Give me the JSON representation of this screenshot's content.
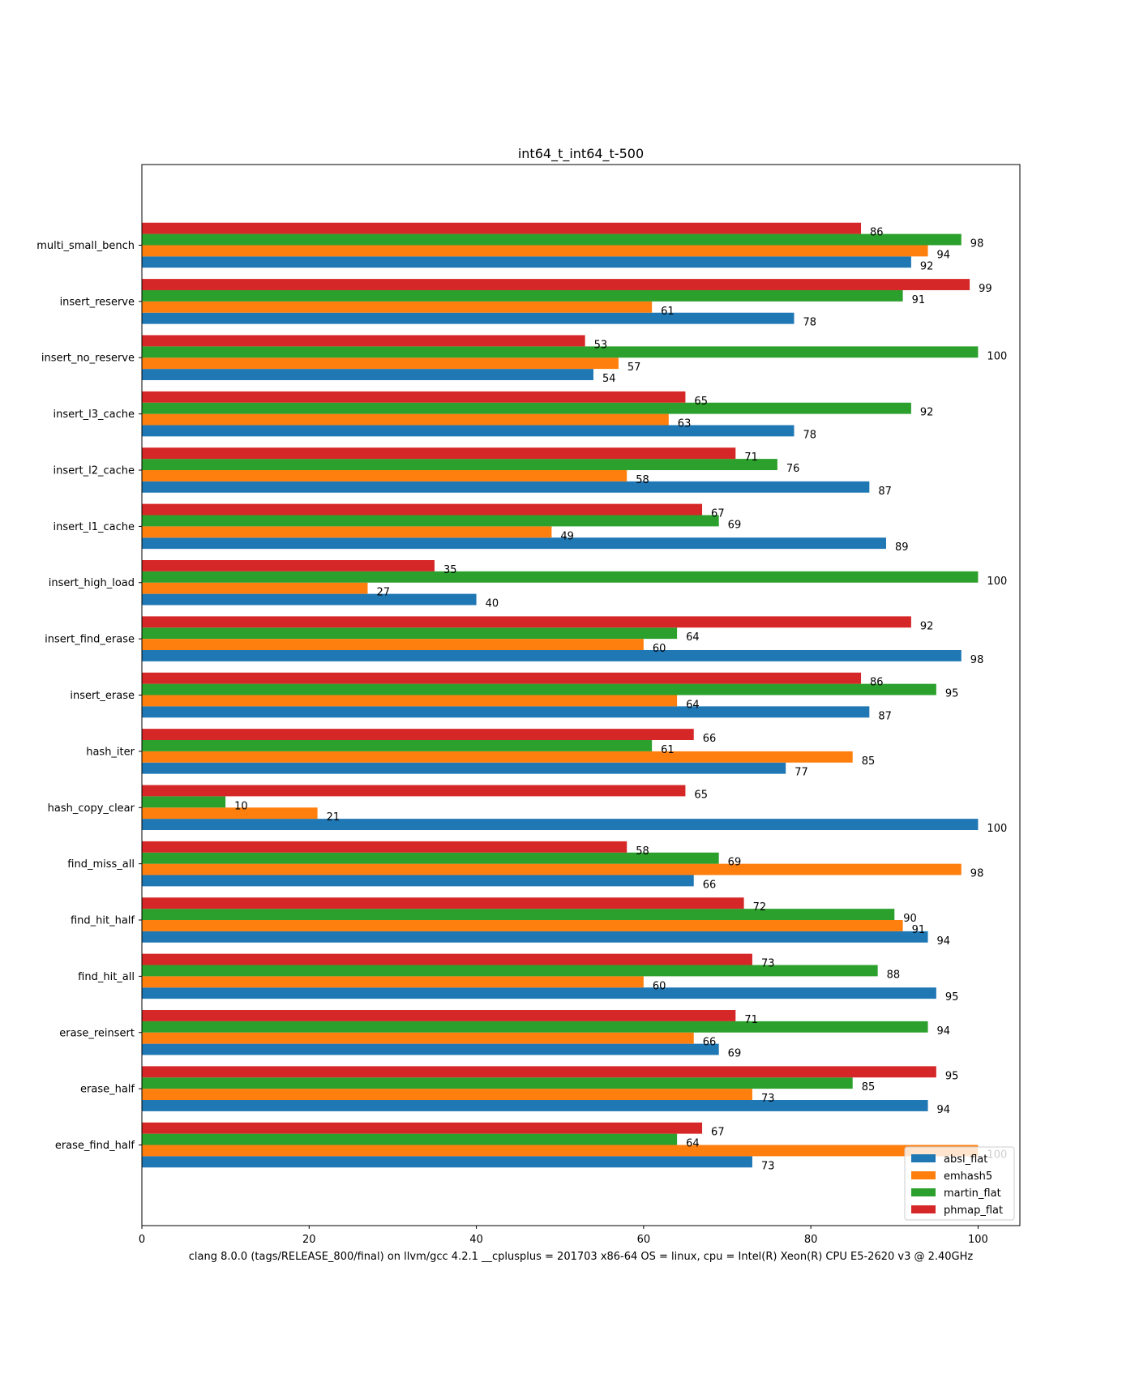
{
  "chart_data": {
    "type": "bar",
    "orientation": "horizontal",
    "title": "int64_t_int64_t-500",
    "xlabel": "clang 8.0.0 (tags/RELEASE_800/final) on llvm/gcc 4.2.1 __cplusplus = 201703 x86-64 OS = linux, cpu = Intel(R) Xeon(R) CPU E5-2620 v3 @ 2.40GHz",
    "ylabel": "",
    "xlim": [
      0,
      105
    ],
    "xticks": [
      0,
      20,
      40,
      60,
      80,
      100
    ],
    "grid": false,
    "legend_position": "bottom-right",
    "categories": [
      "multi_small_bench",
      "insert_reserve",
      "insert_no_reserve",
      "insert_l3_cache",
      "insert_l2_cache",
      "insert_l1_cache",
      "insert_high_load",
      "insert_find_erase",
      "insert_erase",
      "hash_iter",
      "hash_copy_clear",
      "find_miss_all",
      "find_hit_half",
      "find_hit_all",
      "erase_reinsert",
      "erase_half",
      "erase_find_half"
    ],
    "series": [
      {
        "name": "absl_flat",
        "color": "#1f77b4",
        "values": [
          92,
          78,
          54,
          78,
          87,
          89,
          40,
          98,
          87,
          77,
          100,
          66,
          94,
          95,
          69,
          94,
          73
        ]
      },
      {
        "name": "emhash5",
        "color": "#ff7f0e",
        "values": [
          94,
          61,
          57,
          63,
          58,
          49,
          27,
          60,
          64,
          85,
          21,
          98,
          91,
          60,
          66,
          73,
          100
        ]
      },
      {
        "name": "martin_flat",
        "color": "#2ca02c",
        "values": [
          98,
          91,
          100,
          92,
          76,
          69,
          100,
          64,
          95,
          61,
          10,
          69,
          90,
          88,
          94,
          85,
          64
        ]
      },
      {
        "name": "phmap_flat",
        "color": "#d62728",
        "values": [
          86,
          99,
          53,
          65,
          71,
          67,
          35,
          92,
          86,
          66,
          65,
          58,
          72,
          73,
          71,
          95,
          67
        ]
      }
    ]
  }
}
